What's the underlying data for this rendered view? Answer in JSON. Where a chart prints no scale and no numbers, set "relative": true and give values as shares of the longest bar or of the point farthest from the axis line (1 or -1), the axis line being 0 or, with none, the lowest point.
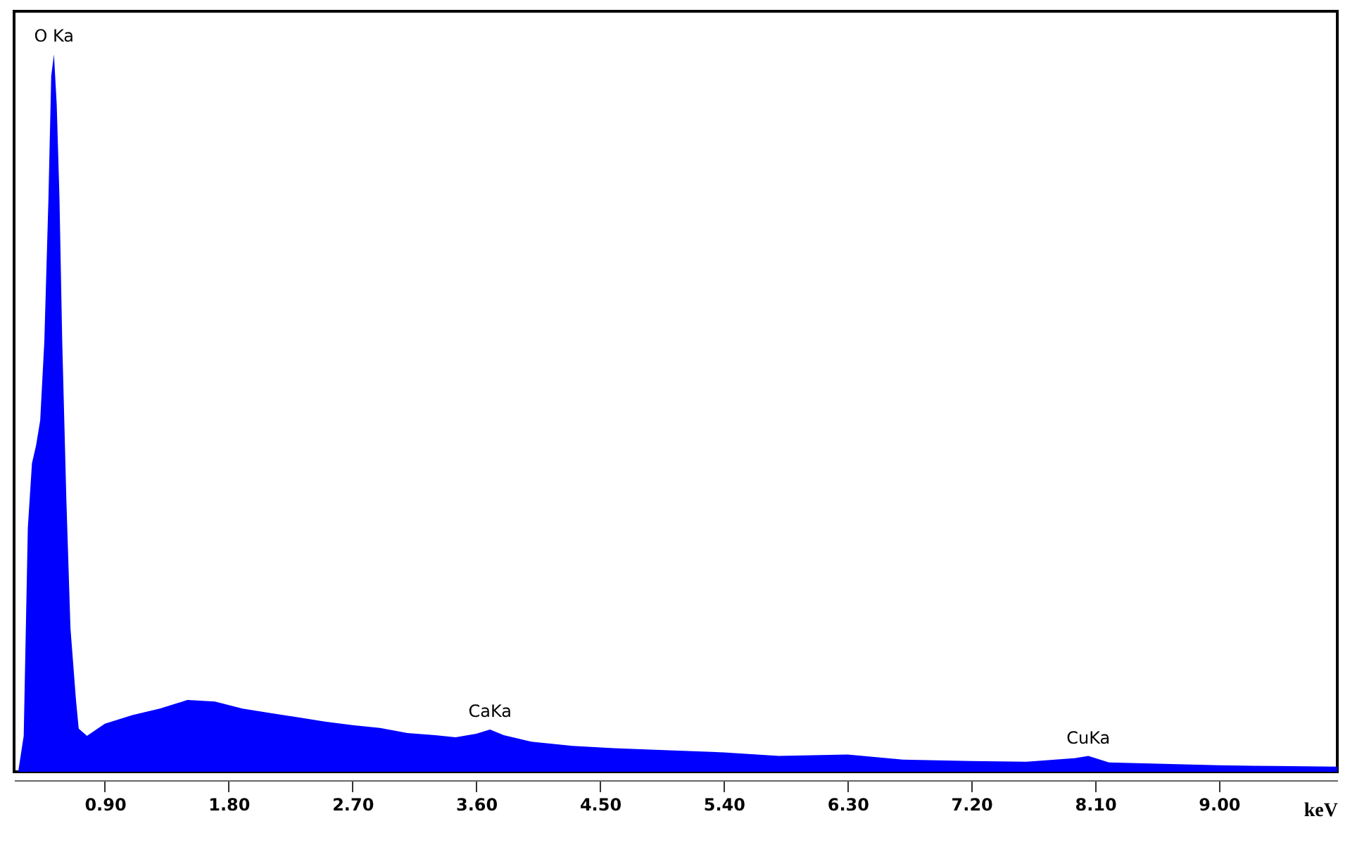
{
  "chart_data": {
    "type": "area",
    "relative": true,
    "xlabel": "keV",
    "x": [
      0.27,
      0.31,
      0.34,
      0.37,
      0.4,
      0.43,
      0.46,
      0.49,
      0.51,
      0.53,
      0.55,
      0.57,
      0.59,
      0.62,
      0.65,
      0.69,
      0.71,
      0.77,
      0.9,
      1.1,
      1.3,
      1.5,
      1.7,
      1.9,
      2.1,
      2.3,
      2.5,
      2.7,
      2.9,
      3.1,
      3.3,
      3.45,
      3.6,
      3.7,
      3.8,
      4.0,
      4.3,
      4.6,
      5.0,
      5.4,
      5.8,
      6.3,
      6.7,
      7.2,
      7.6,
      7.95,
      8.05,
      8.2,
      8.6,
      9.0,
      9.4,
      9.86
    ],
    "series": [
      {
        "color": "#0000ff",
        "values": [
          0,
          0.05,
          0.34,
          0.43,
          0.455,
          0.49,
          0.6,
          0.8,
          0.97,
          1,
          0.93,
          0.8,
          0.6,
          0.38,
          0.2,
          0.1,
          0.06,
          0.05,
          0.067,
          0.079,
          0.088,
          0.1,
          0.098,
          0.088,
          0.082,
          0.076,
          0.07,
          0.065,
          0.061,
          0.054,
          0.051,
          0.048,
          0.053,
          0.059,
          0.051,
          0.042,
          0.036,
          0.033,
          0.03,
          0.027,
          0.022,
          0.024,
          0.017,
          0.015,
          0.014,
          0.019,
          0.022,
          0.013,
          0.011,
          0.009,
          0.008,
          0.007
        ]
      }
    ],
    "xlim": [
      0.24,
      9.86
    ],
    "xticks": [
      {
        "value": 0.9,
        "label": "0.90"
      },
      {
        "value": 1.8,
        "label": "1.80"
      },
      {
        "value": 2.7,
        "label": "2.70"
      },
      {
        "value": 3.6,
        "label": "3.60"
      },
      {
        "value": 4.5,
        "label": "4.50"
      },
      {
        "value": 5.4,
        "label": "5.40"
      },
      {
        "value": 6.3,
        "label": "6.30"
      },
      {
        "value": 7.2,
        "label": "7.20"
      },
      {
        "value": 8.1,
        "label": "8.10"
      },
      {
        "value": 9.0,
        "label": "9.00"
      }
    ],
    "annotations": [
      {
        "text": "O Ka",
        "x": 0.53,
        "y": 1
      },
      {
        "text": "CaKa",
        "x": 3.7,
        "y": 0.059
      },
      {
        "text": "CuKa",
        "x": 8.05,
        "y": 0.022
      }
    ],
    "grid": false
  }
}
